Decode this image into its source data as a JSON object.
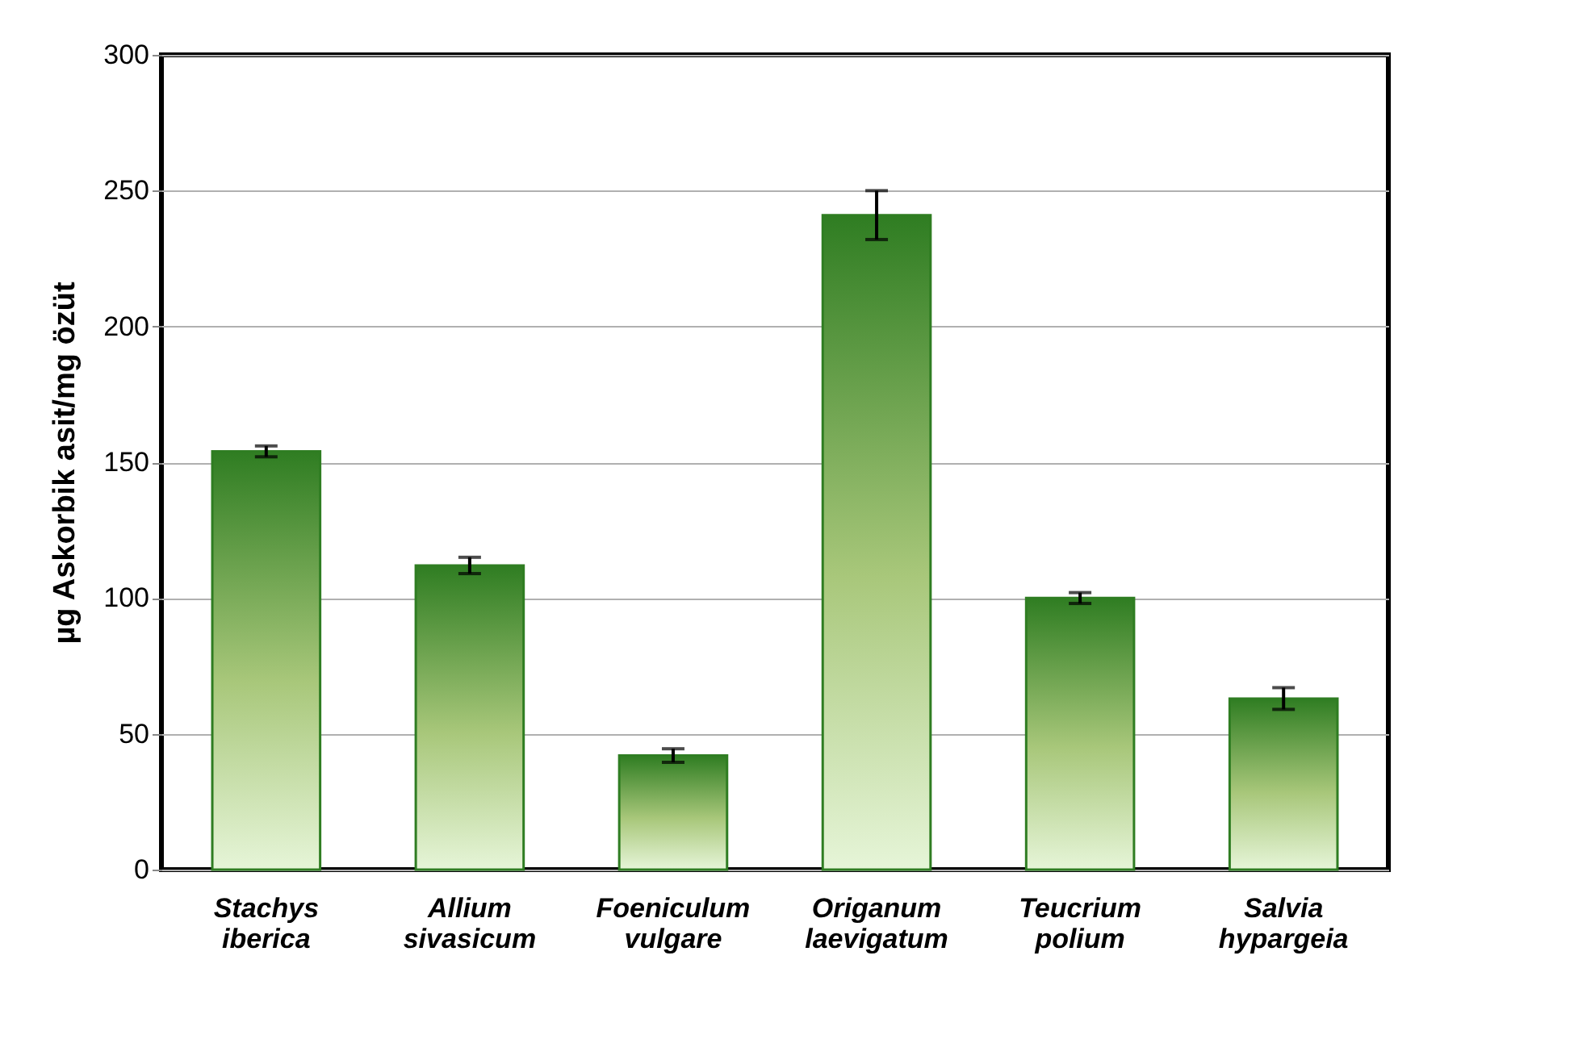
{
  "chart_data": {
    "type": "bar",
    "ylabel": "µg Askorbik asit/mg özüt",
    "categories": [
      "Stachys iberica",
      "Allium sivasicum",
      "Foeniculum vulgare",
      "Origanum laevigatum",
      "Teucrium polium",
      "Salvia hypargeia"
    ],
    "values": [
      154,
      112,
      42,
      241,
      100,
      63
    ],
    "errors": [
      2,
      3,
      2.5,
      9,
      2,
      4
    ],
    "color": "#2f7d22",
    "ylim": [
      0,
      300
    ],
    "yticks": [
      0,
      50,
      100,
      150,
      200,
      250,
      300
    ],
    "grid": "y"
  }
}
